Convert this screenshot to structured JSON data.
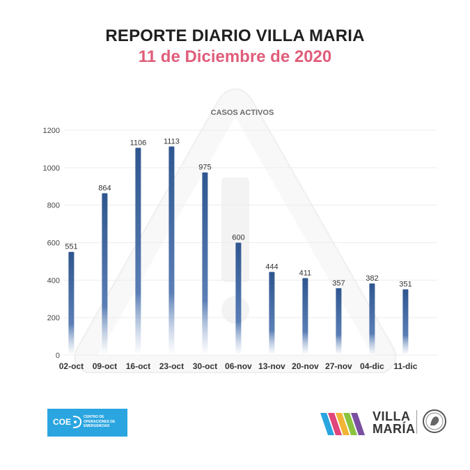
{
  "header": {
    "title": "REPORTE DIARIO VILLA MARIA",
    "subtitle": "11 de Diciembre de 2020"
  },
  "colors": {
    "title": "#1f1f1f",
    "subtitle": "#e05d7a",
    "bar": "#3a5f9a",
    "coe_blue": "#2aa5e0"
  },
  "chart_data": {
    "type": "bar",
    "title": "CASOS ACTIVOS",
    "xlabel": "",
    "ylabel": "",
    "categories": [
      "02-oct",
      "09-oct",
      "16-oct",
      "23-oct",
      "30-oct",
      "06-nov",
      "13-nov",
      "20-nov",
      "27-nov",
      "04-dic",
      "11-dic"
    ],
    "values": [
      551,
      864,
      1106,
      1113,
      975,
      600,
      444,
      411,
      357,
      382,
      351
    ],
    "ylim": [
      0,
      1200
    ],
    "yticks": [
      0,
      200,
      400,
      600,
      800,
      1000,
      1200
    ],
    "grid": true,
    "legend": "none"
  },
  "logos": {
    "coe": {
      "text": "COE",
      "description": "Centro de Operaciones de Emergencias"
    },
    "villa_maria": {
      "line1": "VILLA",
      "line2": "MARÍA"
    }
  }
}
